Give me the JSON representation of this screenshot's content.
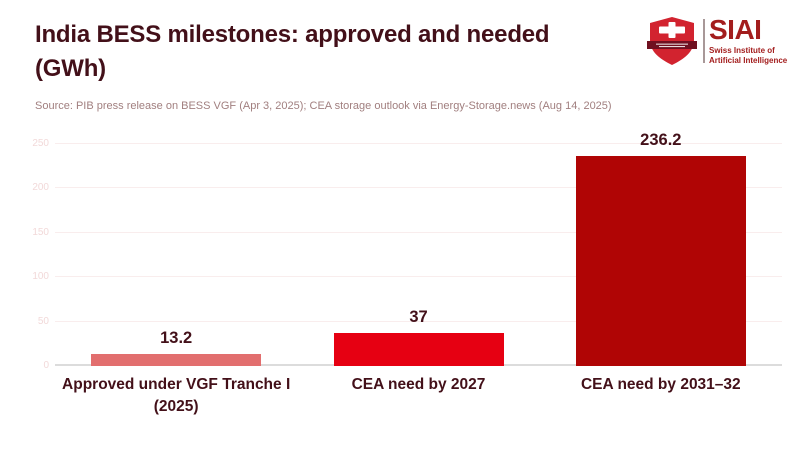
{
  "header": {
    "title": "India BESS milestones: approved and needed (GWh)",
    "source": "Source: PIB press release on BESS VGF (Apr 3, 2025); CEA storage outlook via Energy-Storage.news (Aug 14, 2025)"
  },
  "logo": {
    "acronym": "SIAI",
    "subtitle_line1": "Swiss Institute of",
    "subtitle_line2": "Artificial Intelligence",
    "brand_color": "#a31d1d",
    "shield_color": "#d2232f",
    "banner_color": "#701020"
  },
  "chart_data": {
    "type": "bar",
    "title": "India BESS milestones: approved and needed (GWh)",
    "categories": [
      "Approved under VGF Tranche I (2025)",
      "CEA need by 2027",
      "CEA need by 2031–32"
    ],
    "values": [
      13.2,
      37,
      236.2
    ],
    "value_labels": [
      "13.2",
      "37",
      "236.2"
    ],
    "bar_colors": [
      "#e26e6e",
      "#e60012",
      "#b00505"
    ],
    "xlabel": "",
    "ylabel": "",
    "ylim": [
      0,
      250
    ],
    "yticks": [
      0,
      50,
      100,
      150,
      200,
      250
    ],
    "grid": true,
    "legend": false,
    "gridline_color": "#f9eded",
    "tick_label_color": "#f2d9d9",
    "label_color": "#431019"
  }
}
